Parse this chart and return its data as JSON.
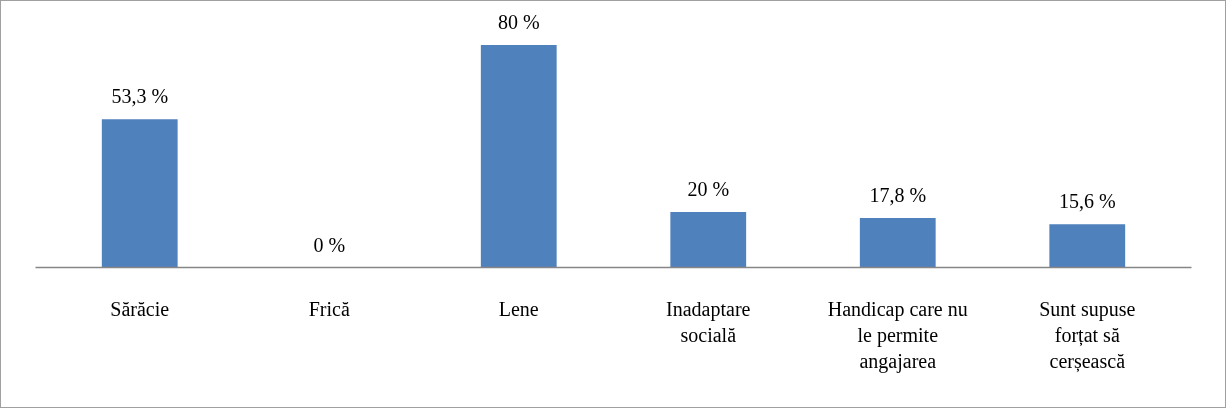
{
  "chart_data": {
    "type": "bar",
    "categories": [
      "Sărăcie",
      "Frică",
      "Lene",
      "Inadaptare socială",
      "Handicap care nu le permite angajarea",
      "Sunt supuse forțat să cerșească"
    ],
    "values": [
      53.3,
      0,
      80,
      20,
      17.8,
      15.6
    ],
    "value_labels": [
      "53,3 %",
      "0 %",
      "80 %",
      "20 %",
      "17,8 %",
      "15,6 %"
    ],
    "color": "#4f81bd",
    "grid": false
  }
}
